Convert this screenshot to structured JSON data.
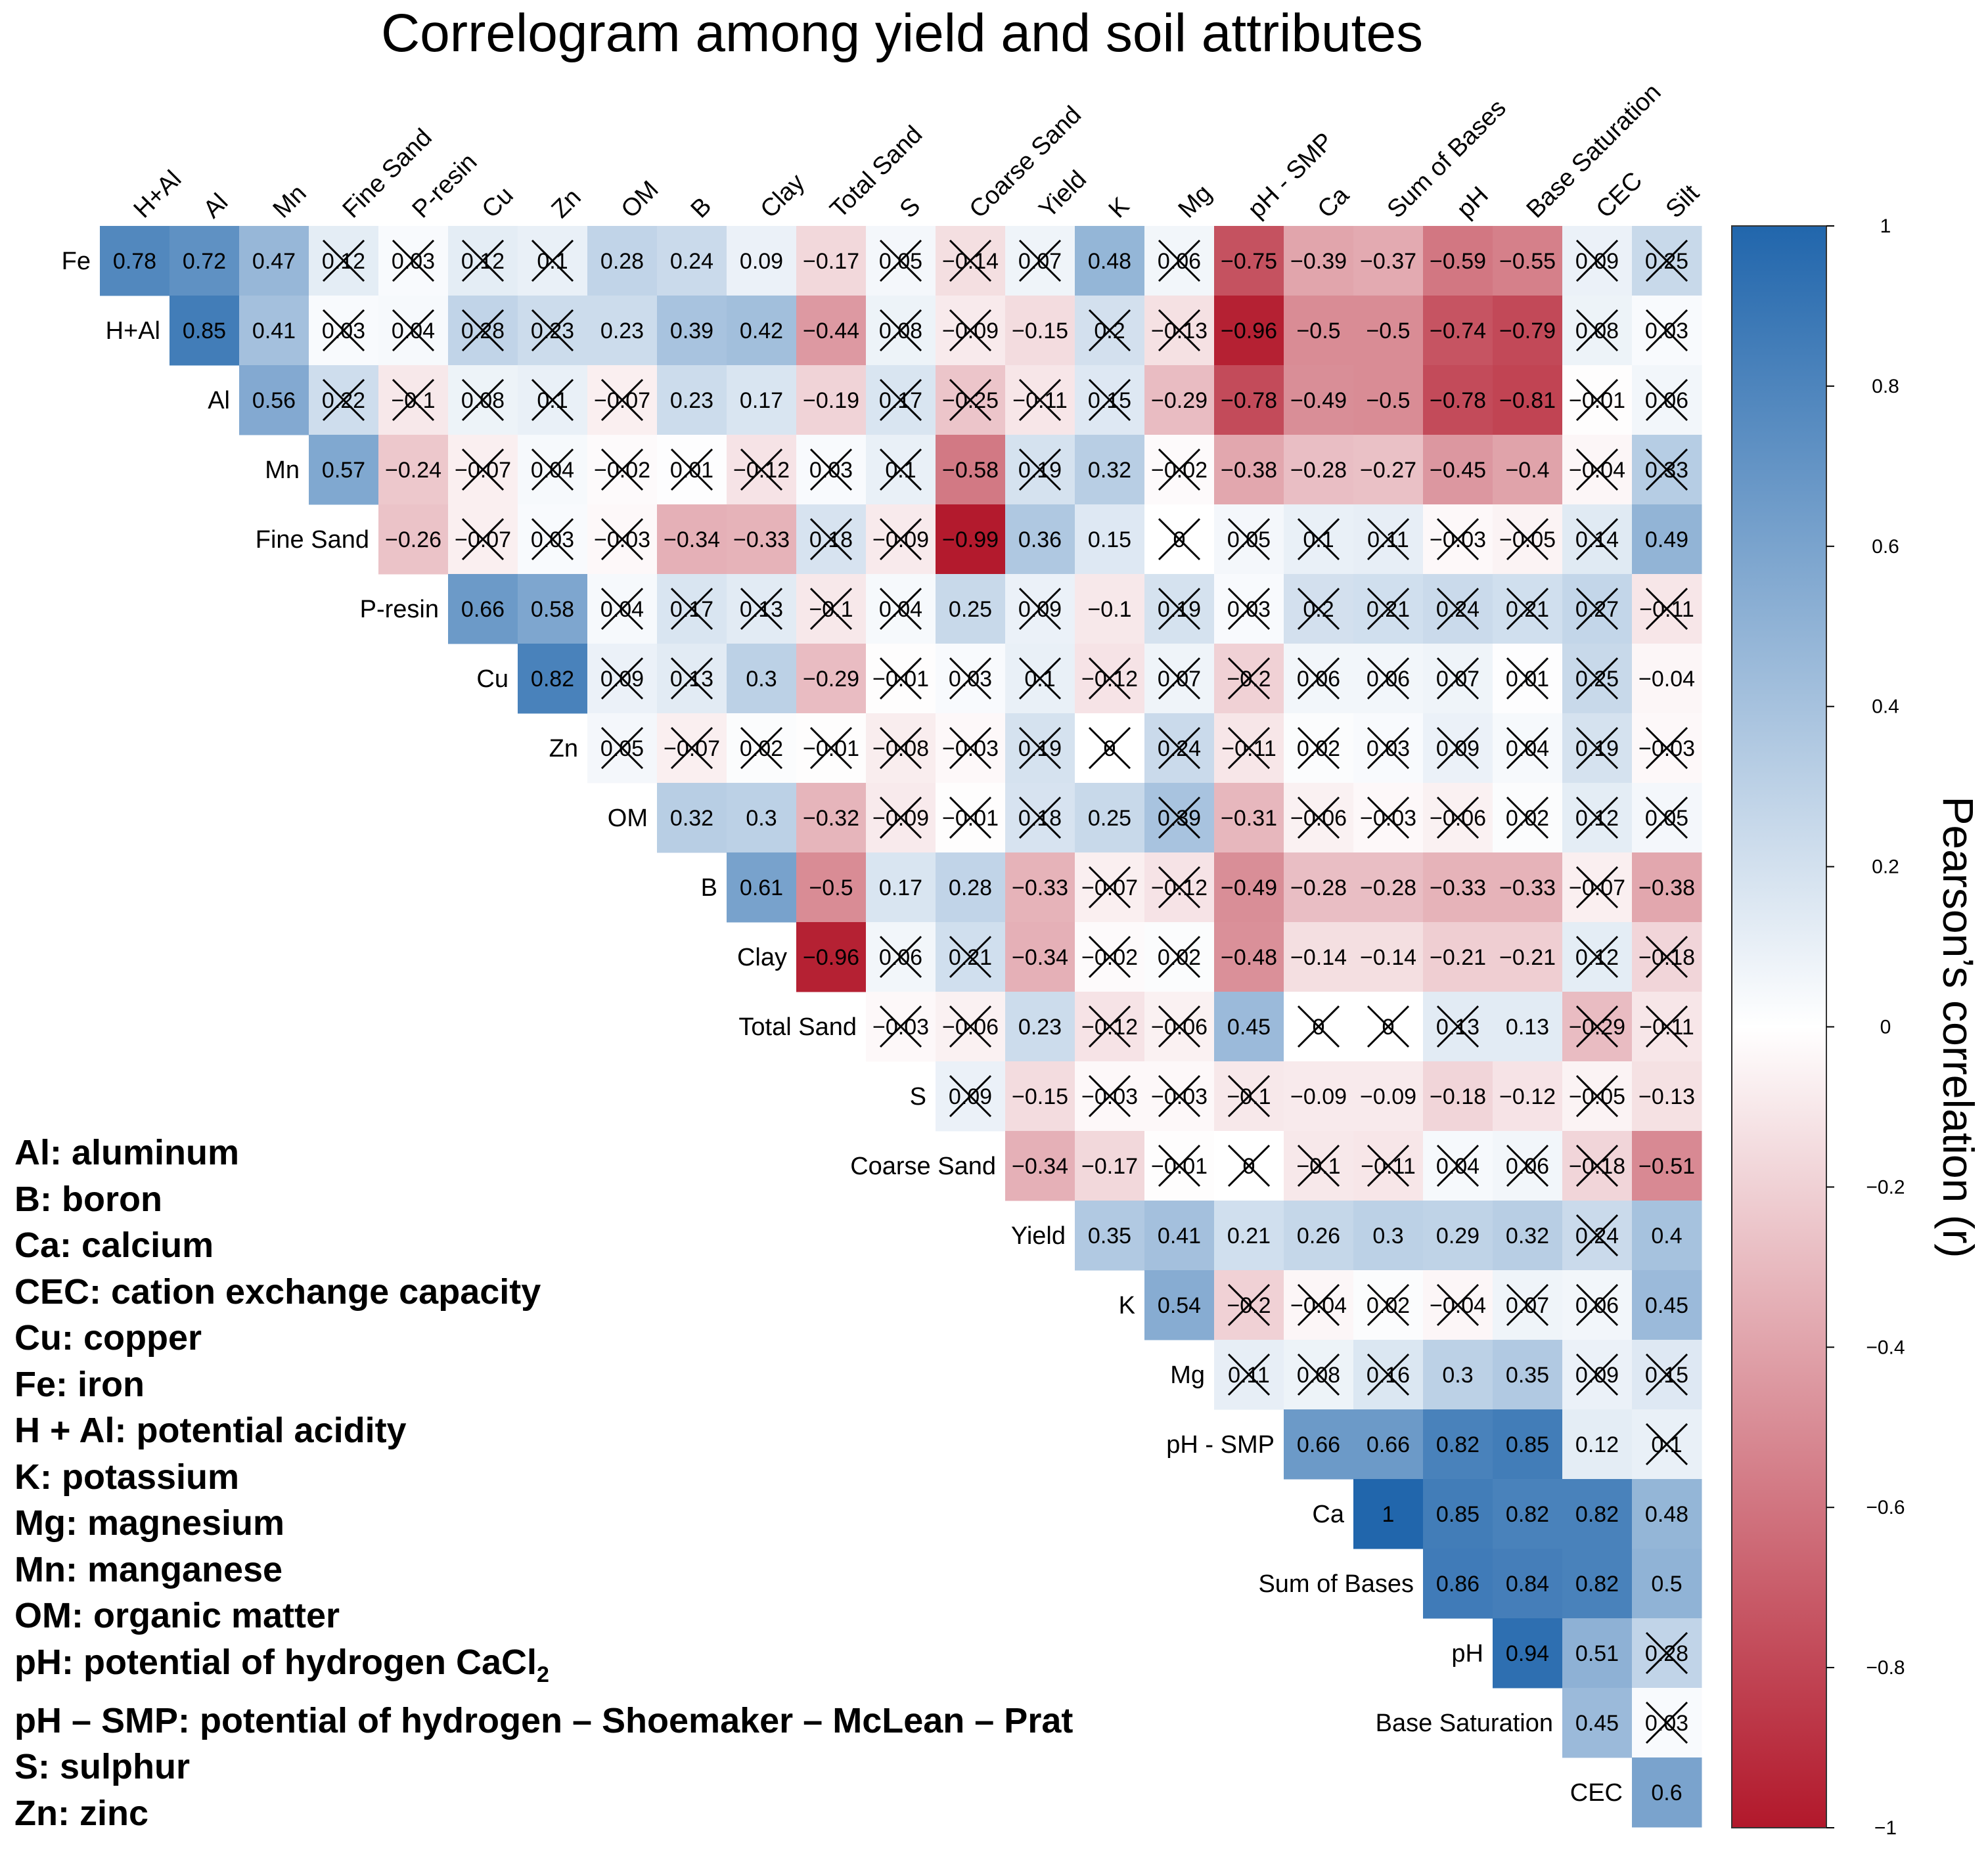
{
  "chart_data": {
    "type": "heatmap",
    "subtype": "upper-triangle correlogram",
    "title": "Correlogram among yield and soil attributes",
    "row_labels": [
      "Fe",
      "H+Al",
      "Al",
      "Mn",
      "Fine Sand",
      "P-resin",
      "Cu",
      "Zn",
      "OM",
      "B",
      "Clay",
      "Total Sand",
      "S",
      "Coarse Sand",
      "Yield",
      "K",
      "Mg",
      "pH - SMP",
      "Ca",
      "Sum of Bases",
      "pH",
      "Base Saturation",
      "CEC"
    ],
    "column_labels": [
      "H+Al",
      "Al",
      "Mn",
      "Fine Sand",
      "P-resin",
      "Cu",
      "Zn",
      "OM",
      "B",
      "Clay",
      "Total Sand",
      "S",
      "Coarse Sand",
      "Yield",
      "K",
      "Mg",
      "pH - SMP",
      "Ca",
      "Sum of Bases",
      "pH",
      "Base Saturation",
      "CEC",
      "Silt"
    ],
    "rows": [
      {
        "label": "Fe",
        "values": [
          "0.78",
          "0.72",
          "0.47",
          "0.12",
          "0.03",
          "0.12",
          "0.1",
          "0.28",
          "0.24",
          "0.09",
          "-0.17",
          "0.05",
          "-0.14",
          "0.07",
          "0.48",
          "0.06",
          "-0.75",
          "-0.39",
          "-0.37",
          "-0.59",
          "-0.55",
          "0.09",
          "0.25"
        ],
        "crossed": [
          0,
          0,
          0,
          1,
          1,
          1,
          1,
          0,
          0,
          0,
          0,
          1,
          1,
          1,
          0,
          1,
          0,
          0,
          0,
          0,
          0,
          1,
          1
        ]
      },
      {
        "label": "H+Al",
        "values": [
          "0.85",
          "0.41",
          "0.03",
          "0.04",
          "0.28",
          "0.23",
          "0.23",
          "0.39",
          "0.42",
          "-0.44",
          "0.08",
          "-0.09",
          "-0.15",
          "0.2",
          "-0.13",
          "-0.96",
          "-0.5",
          "-0.5",
          "-0.74",
          "-0.79",
          "0.08",
          "0.03"
        ],
        "crossed": [
          0,
          0,
          1,
          1,
          1,
          1,
          0,
          0,
          0,
          0,
          1,
          1,
          0,
          1,
          1,
          0,
          0,
          0,
          0,
          0,
          1,
          1
        ]
      },
      {
        "label": "Al",
        "values": [
          "0.56",
          "0.22",
          "-0.1",
          "0.08",
          "0.1",
          "-0.07",
          "0.23",
          "0.17",
          "-0.19",
          "0.17",
          "-0.25",
          "-0.11",
          "0.15",
          "-0.29",
          "-0.78",
          "-0.49",
          "-0.5",
          "-0.78",
          "-0.81",
          "-0.01",
          "0.06"
        ],
        "crossed": [
          0,
          1,
          1,
          1,
          1,
          1,
          0,
          0,
          0,
          1,
          1,
          1,
          1,
          0,
          0,
          0,
          0,
          0,
          0,
          1,
          1
        ]
      },
      {
        "label": "Mn",
        "values": [
          "0.57",
          "-0.24",
          "-0.07",
          "0.04",
          "-0.02",
          "0.01",
          "-0.12",
          "0.03",
          "0.1",
          "-0.58",
          "0.19",
          "0.32",
          "-0.02",
          "-0.38",
          "-0.28",
          "-0.27",
          "-0.45",
          "-0.4",
          "-0.04",
          "0.33"
        ],
        "crossed": [
          0,
          0,
          1,
          1,
          1,
          1,
          1,
          1,
          1,
          0,
          1,
          0,
          1,
          0,
          0,
          0,
          0,
          0,
          1,
          1
        ]
      },
      {
        "label": "Fine Sand",
        "values": [
          "-0.26",
          "-0.07",
          "0.03",
          "-0.03",
          "-0.34",
          "-0.33",
          "0.18",
          "-0.09",
          "-0.99",
          "0.36",
          "0.15",
          "0",
          "0.05",
          "0.1",
          "0.11",
          "-0.03",
          "-0.05",
          "0.14",
          "0.49"
        ],
        "crossed": [
          0,
          1,
          1,
          1,
          0,
          0,
          1,
          1,
          0,
          0,
          0,
          1,
          1,
          1,
          1,
          1,
          1,
          1,
          0
        ]
      },
      {
        "label": "P-resin",
        "values": [
          "0.66",
          "0.58",
          "0.04",
          "0.17",
          "0.13",
          "-0.1",
          "0.04",
          "0.25",
          "0.09",
          "-0.1",
          "0.19",
          "0.03",
          "0.2",
          "0.21",
          "0.24",
          "0.21",
          "0.27",
          "-0.11"
        ],
        "crossed": [
          0,
          0,
          1,
          1,
          1,
          1,
          1,
          0,
          1,
          0,
          1,
          1,
          1,
          1,
          1,
          1,
          1,
          1
        ]
      },
      {
        "label": "Cu",
        "values": [
          "0.82",
          "0.09",
          "0.13",
          "0.3",
          "-0.29",
          "-0.01",
          "0.03",
          "0.1",
          "-0.12",
          "0.07",
          "-0.2",
          "0.06",
          "0.06",
          "0.07",
          "0.01",
          "0.25",
          "-0.04"
        ],
        "crossed": [
          0,
          1,
          1,
          0,
          0,
          1,
          1,
          1,
          1,
          1,
          1,
          1,
          1,
          1,
          1,
          1,
          0
        ]
      },
      {
        "label": "Zn",
        "values": [
          "0.05",
          "-0.07",
          "0.02",
          "-0.01",
          "-0.08",
          "-0.03",
          "0.19",
          "0",
          "0.24",
          "-0.11",
          "0.02",
          "0.03",
          "0.09",
          "0.04",
          "0.19",
          "-0.03"
        ],
        "crossed": [
          1,
          1,
          1,
          1,
          1,
          1,
          1,
          1,
          1,
          1,
          1,
          1,
          1,
          1,
          1,
          1
        ]
      },
      {
        "label": "OM",
        "values": [
          "0.32",
          "0.3",
          "-0.32",
          "-0.09",
          "-0.01",
          "0.18",
          "0.25",
          "0.39",
          "-0.31",
          "-0.06",
          "-0.03",
          "-0.06",
          "0.02",
          "0.12",
          "0.05"
        ],
        "crossed": [
          0,
          0,
          0,
          1,
          1,
          1,
          0,
          1,
          0,
          1,
          1,
          1,
          1,
          1,
          1
        ]
      },
      {
        "label": "B",
        "values": [
          "0.61",
          "-0.5",
          "0.17",
          "0.28",
          "-0.33",
          "-0.07",
          "-0.12",
          "-0.49",
          "-0.28",
          "-0.28",
          "-0.33",
          "-0.33",
          "-0.07",
          "-0.38"
        ],
        "crossed": [
          0,
          0,
          0,
          0,
          0,
          1,
          1,
          0,
          0,
          0,
          0,
          0,
          1,
          0
        ]
      },
      {
        "label": "Clay",
        "values": [
          "-0.96",
          "0.06",
          "0.21",
          "-0.34",
          "-0.02",
          "0.02",
          "-0.48",
          "-0.14",
          "-0.14",
          "-0.21",
          "-0.21",
          "0.12",
          "-0.18"
        ],
        "crossed": [
          0,
          1,
          1,
          0,
          1,
          1,
          0,
          0,
          0,
          0,
          0,
          1,
          1
        ]
      },
      {
        "label": "Total Sand",
        "values": [
          "-0.03",
          "-0.06",
          "0.23",
          "-0.12",
          "-0.06",
          "0.45",
          "0",
          "0",
          "0.13",
          "0.13",
          "-0.29",
          "-0.11"
        ],
        "crossed": [
          1,
          1,
          0,
          1,
          1,
          0,
          1,
          1,
          1,
          0,
          1,
          1
        ]
      },
      {
        "label": "S",
        "values": [
          "0.09",
          "-0.15",
          "-0.03",
          "-0.03",
          "-0.1",
          "-0.09",
          "-0.09",
          "-0.18",
          "-0.12",
          "-0.05",
          "-0.13"
        ],
        "crossed": [
          1,
          0,
          1,
          1,
          1,
          0,
          0,
          0,
          0,
          1,
          0
        ]
      },
      {
        "label": "Coarse Sand",
        "values": [
          "-0.34",
          "-0.17",
          "-0.01",
          "0",
          "-0.1",
          "-0.11",
          "0.04",
          "0.06",
          "-0.18",
          "-0.51"
        ],
        "crossed": [
          0,
          0,
          1,
          1,
          1,
          1,
          1,
          1,
          1,
          0
        ]
      },
      {
        "label": "Yield",
        "values": [
          "0.35",
          "0.41",
          "0.21",
          "0.26",
          "0.3",
          "0.29",
          "0.32",
          "0.24",
          "0.4"
        ],
        "crossed": [
          0,
          0,
          0,
          0,
          0,
          0,
          0,
          1,
          0
        ]
      },
      {
        "label": "K",
        "values": [
          "0.54",
          "-0.2",
          "-0.04",
          "0.02",
          "-0.04",
          "0.07",
          "0.06",
          "0.45"
        ],
        "crossed": [
          0,
          1,
          1,
          1,
          1,
          1,
          1,
          0
        ]
      },
      {
        "label": "Mg",
        "values": [
          "0.11",
          "0.08",
          "0.16",
          "0.3",
          "0.35",
          "0.09",
          "0.15"
        ],
        "crossed": [
          1,
          1,
          1,
          0,
          0,
          1,
          1
        ]
      },
      {
        "label": "pH - SMP",
        "values": [
          "0.66",
          "0.66",
          "0.82",
          "0.85",
          "0.12",
          "0.1"
        ],
        "crossed": [
          0,
          0,
          0,
          0,
          0,
          1
        ]
      },
      {
        "label": "Ca",
        "values": [
          "1",
          "0.85",
          "0.82",
          "0.82",
          "0.48"
        ],
        "crossed": [
          0,
          0,
          0,
          0,
          0
        ]
      },
      {
        "label": "Sum of Bases",
        "values": [
          "0.86",
          "0.84",
          "0.82",
          "0.5"
        ],
        "crossed": [
          0,
          0,
          0,
          0
        ]
      },
      {
        "label": "pH",
        "values": [
          "0.94",
          "0.51",
          "0.28"
        ],
        "crossed": [
          0,
          0,
          1
        ]
      },
      {
        "label": "Base Saturation",
        "values": [
          "0.45",
          "0.03"
        ],
        "crossed": [
          0,
          1
        ]
      },
      {
        "label": "CEC",
        "values": [
          "0.6"
        ],
        "crossed": [
          0
        ]
      }
    ],
    "colorbar": {
      "label": "Pearson’s correlation (r)",
      "ticks": [
        "1",
        "0.8",
        "0.6",
        "0.4",
        "0.2",
        "0",
        "−0.2",
        "−0.4",
        "−0.6",
        "−0.8",
        "−1"
      ],
      "range": [
        -1,
        1
      ],
      "colors": {
        "negative": "#B2182B",
        "zero": "#FFFFFF",
        "positive": "#2166AC"
      }
    },
    "cross_meaning": "non-significant correlation"
  },
  "abbreviations": [
    "Al: aluminum",
    "B: boron",
    "Ca: calcium",
    "CEC: cation exchange capacity",
    "Cu: copper",
    "Fe: iron",
    "H + Al: potential acidity",
    "K: potassium",
    "Mg: magnesium",
    "Mn: manganese",
    "OM: organic matter",
    "pH: potential of hydrogen CaCl",
    "pH – SMP: potential of hydrogen – Shoemaker – McLean – Prat",
    "S: sulphur",
    "Zn: zinc"
  ],
  "abbreviation_subscripts": {
    "11": "2"
  }
}
